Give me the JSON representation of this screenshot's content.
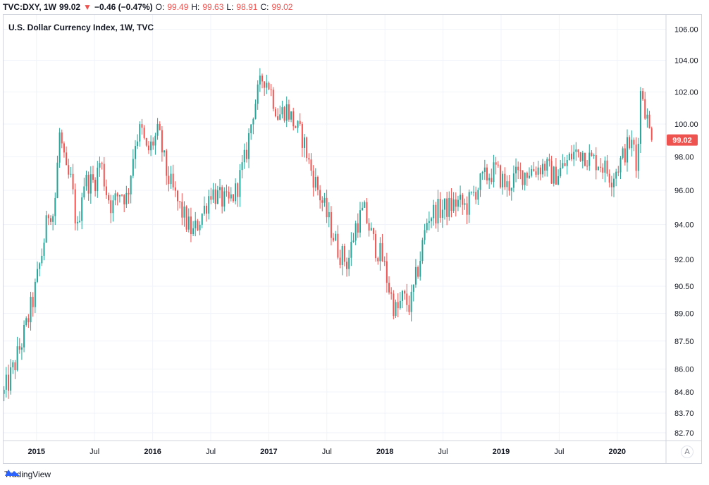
{
  "header": {
    "symbol": "TVC:DXY, 1W",
    "last": "99.02",
    "change": "−0.46 (−0.47%)",
    "open_label": "O:",
    "open": "99.49",
    "high_label": "H:",
    "high": "99.63",
    "low_label": "L:",
    "low": "98.91",
    "close_label": "C:",
    "close": "99.02"
  },
  "footer": {
    "brand": "TradingView"
  },
  "axis_button": "A",
  "colors": {
    "up": "#26a69a",
    "down": "#ef5350",
    "grid": "#f0f3fa",
    "text": "#131722"
  },
  "chart_data": {
    "type": "candlestick",
    "title": "U.S. Dollar Currency Index, 1W, TVC",
    "interval": "1W",
    "last_price_label": "99.02",
    "x_ticks": [
      "2015",
      "Jul",
      "2016",
      "Jul",
      "2017",
      "Jul",
      "2018",
      "Jul",
      "2019",
      "Jul",
      "2020"
    ],
    "x_tick_times": [
      2015.0,
      2015.5,
      2016.0,
      2016.5,
      2017.0,
      2017.5,
      2018.0,
      2018.5,
      2019.0,
      2019.5,
      2020.0
    ],
    "x_range": [
      2014.71,
      2020.42
    ],
    "y_ticks": [
      "106.00",
      "104.00",
      "102.00",
      "100.00",
      "98.00",
      "96.00",
      "94.00",
      "92.00",
      "90.50",
      "89.00",
      "87.50",
      "86.00",
      "84.80",
      "83.70",
      "82.70"
    ],
    "y_tick_values": [
      106.0,
      104.0,
      102.0,
      100.0,
      98.0,
      96.0,
      94.0,
      92.0,
      90.5,
      89.0,
      87.5,
      86.0,
      84.8,
      83.7,
      82.7
    ],
    "y_range": [
      82.3,
      107.0
    ],
    "anchors": [
      [
        2014.72,
        84.7
      ],
      [
        2014.8,
        86.0
      ],
      [
        2014.9,
        88.0
      ],
      [
        2014.98,
        90.0
      ],
      [
        2015.05,
        92.5
      ],
      [
        2015.11,
        95.0
      ],
      [
        2015.15,
        94.5
      ],
      [
        2015.2,
        99.5
      ],
      [
        2015.25,
        97.0
      ],
      [
        2015.3,
        96.5
      ],
      [
        2015.35,
        93.5
      ],
      [
        2015.4,
        96.5
      ],
      [
        2015.5,
        96.5
      ],
      [
        2015.55,
        97.8
      ],
      [
        2015.6,
        96.0
      ],
      [
        2015.65,
        95.0
      ],
      [
        2015.72,
        96.0
      ],
      [
        2015.78,
        95.5
      ],
      [
        2015.85,
        99.0
      ],
      [
        2015.9,
        99.7
      ],
      [
        2015.95,
        98.2
      ],
      [
        2016.05,
        99.5
      ],
      [
        2016.12,
        97.0
      ],
      [
        2016.2,
        95.5
      ],
      [
        2016.3,
        94.0
      ],
      [
        2016.35,
        93.5
      ],
      [
        2016.45,
        95.0
      ],
      [
        2016.5,
        96.0
      ],
      [
        2016.58,
        95.5
      ],
      [
        2016.65,
        95.2
      ],
      [
        2016.72,
        96.0
      ],
      [
        2016.8,
        98.0
      ],
      [
        2016.87,
        101.0
      ],
      [
        2016.95,
        103.0
      ],
      [
        2017.0,
        102.5
      ],
      [
        2017.08,
        100.5
      ],
      [
        2017.15,
        101.0
      ],
      [
        2017.22,
        100.0
      ],
      [
        2017.3,
        99.0
      ],
      [
        2017.35,
        97.5
      ],
      [
        2017.45,
        95.5
      ],
      [
        2017.55,
        93.5
      ],
      [
        2017.6,
        92.5
      ],
      [
        2017.68,
        91.8
      ],
      [
        2017.75,
        94.0
      ],
      [
        2017.82,
        94.8
      ],
      [
        2017.9,
        93.0
      ],
      [
        2017.98,
        92.0
      ],
      [
        2018.05,
        90.0
      ],
      [
        2018.1,
        89.0
      ],
      [
        2018.15,
        89.8
      ],
      [
        2018.22,
        89.4
      ],
      [
        2018.3,
        92.0
      ],
      [
        2018.37,
        94.5
      ],
      [
        2018.45,
        94.8
      ],
      [
        2018.55,
        95.0
      ],
      [
        2018.62,
        95.3
      ],
      [
        2018.7,
        95.0
      ],
      [
        2018.78,
        96.0
      ],
      [
        2018.85,
        96.7
      ],
      [
        2018.95,
        97.2
      ],
      [
        2019.05,
        96.2
      ],
      [
        2019.12,
        96.8
      ],
      [
        2019.25,
        97.2
      ],
      [
        2019.38,
        97.5
      ],
      [
        2019.45,
        96.8
      ],
      [
        2019.55,
        97.5
      ],
      [
        2019.62,
        98.2
      ],
      [
        2019.7,
        98.3
      ],
      [
        2019.78,
        97.8
      ],
      [
        2019.85,
        97.7
      ],
      [
        2019.95,
        96.8
      ],
      [
        2020.02,
        97.6
      ],
      [
        2020.1,
        98.8
      ],
      [
        2020.15,
        98.5
      ],
      [
        2020.17,
        96.5
      ],
      [
        2020.19,
        101.5
      ],
      [
        2020.21,
        102.3
      ],
      [
        2020.25,
        100.5
      ],
      [
        2020.28,
        99.5
      ],
      [
        2020.3,
        99.02
      ]
    ]
  }
}
